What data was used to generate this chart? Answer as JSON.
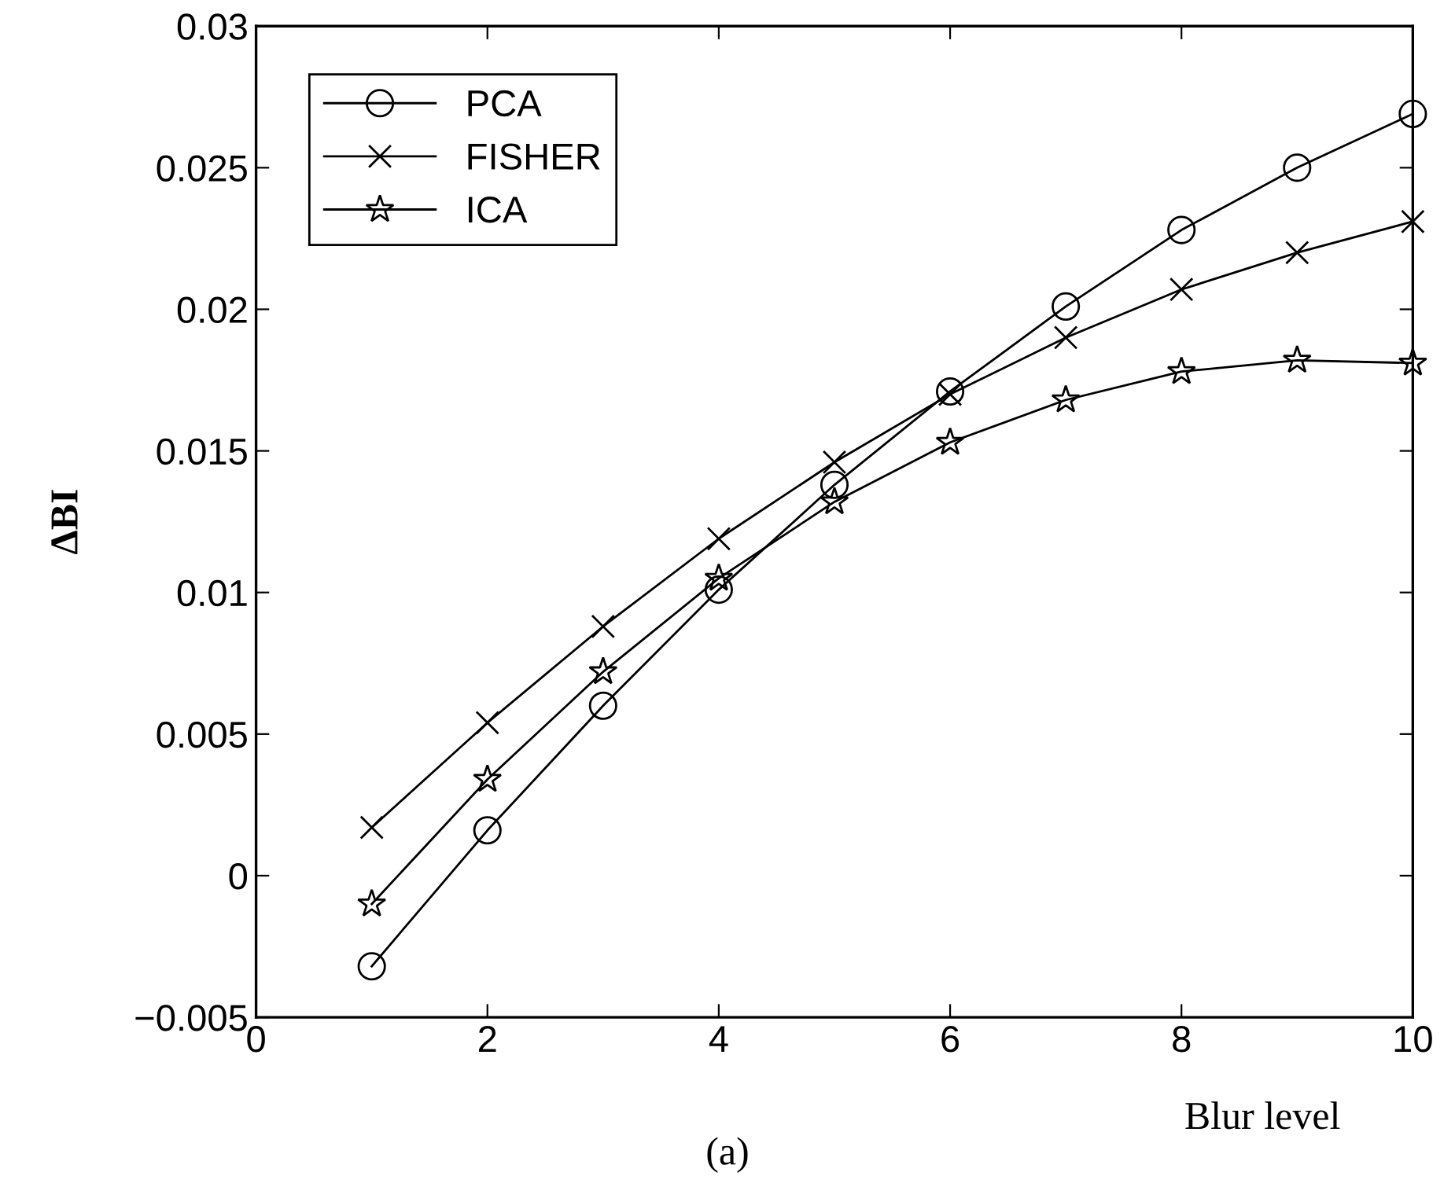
{
  "chart_data": {
    "type": "line",
    "xlabel": "Blur level",
    "ylabel": "ΔBI",
    "annotations": [
      "(a)"
    ],
    "x": [
      1,
      2,
      3,
      4,
      5,
      6,
      7,
      8,
      9,
      10
    ],
    "series": [
      {
        "name": "PCA",
        "color": "#000000",
        "marker": "circle",
        "values": [
          -0.0032,
          0.0016,
          0.006,
          0.0101,
          0.0138,
          0.0171,
          0.0201,
          0.0228,
          0.025,
          0.0269
        ]
      },
      {
        "name": "FISHER",
        "color": "#000000",
        "marker": "cross",
        "values": [
          0.0017,
          0.0054,
          0.0088,
          0.0119,
          0.0146,
          0.017,
          0.019,
          0.0207,
          0.022,
          0.0231
        ]
      },
      {
        "name": "ICA",
        "color": "#000000",
        "marker": "star",
        "values": [
          -0.001,
          0.0034,
          0.0072,
          0.0105,
          0.0132,
          0.0153,
          0.0168,
          0.0178,
          0.0182,
          0.0181
        ]
      }
    ],
    "xlim": [
      0,
      10
    ],
    "xticks": [
      0,
      2,
      4,
      6,
      8,
      10
    ],
    "ylim": [
      -0.005,
      0.03
    ],
    "yticks": [
      {
        "value": -0.005,
        "label": "−0.005"
      },
      0,
      0.005,
      0.01,
      0.015,
      0.02,
      0.025,
      0.03
    ],
    "grid": false,
    "legend": "top left",
    "line_style": "solid"
  }
}
